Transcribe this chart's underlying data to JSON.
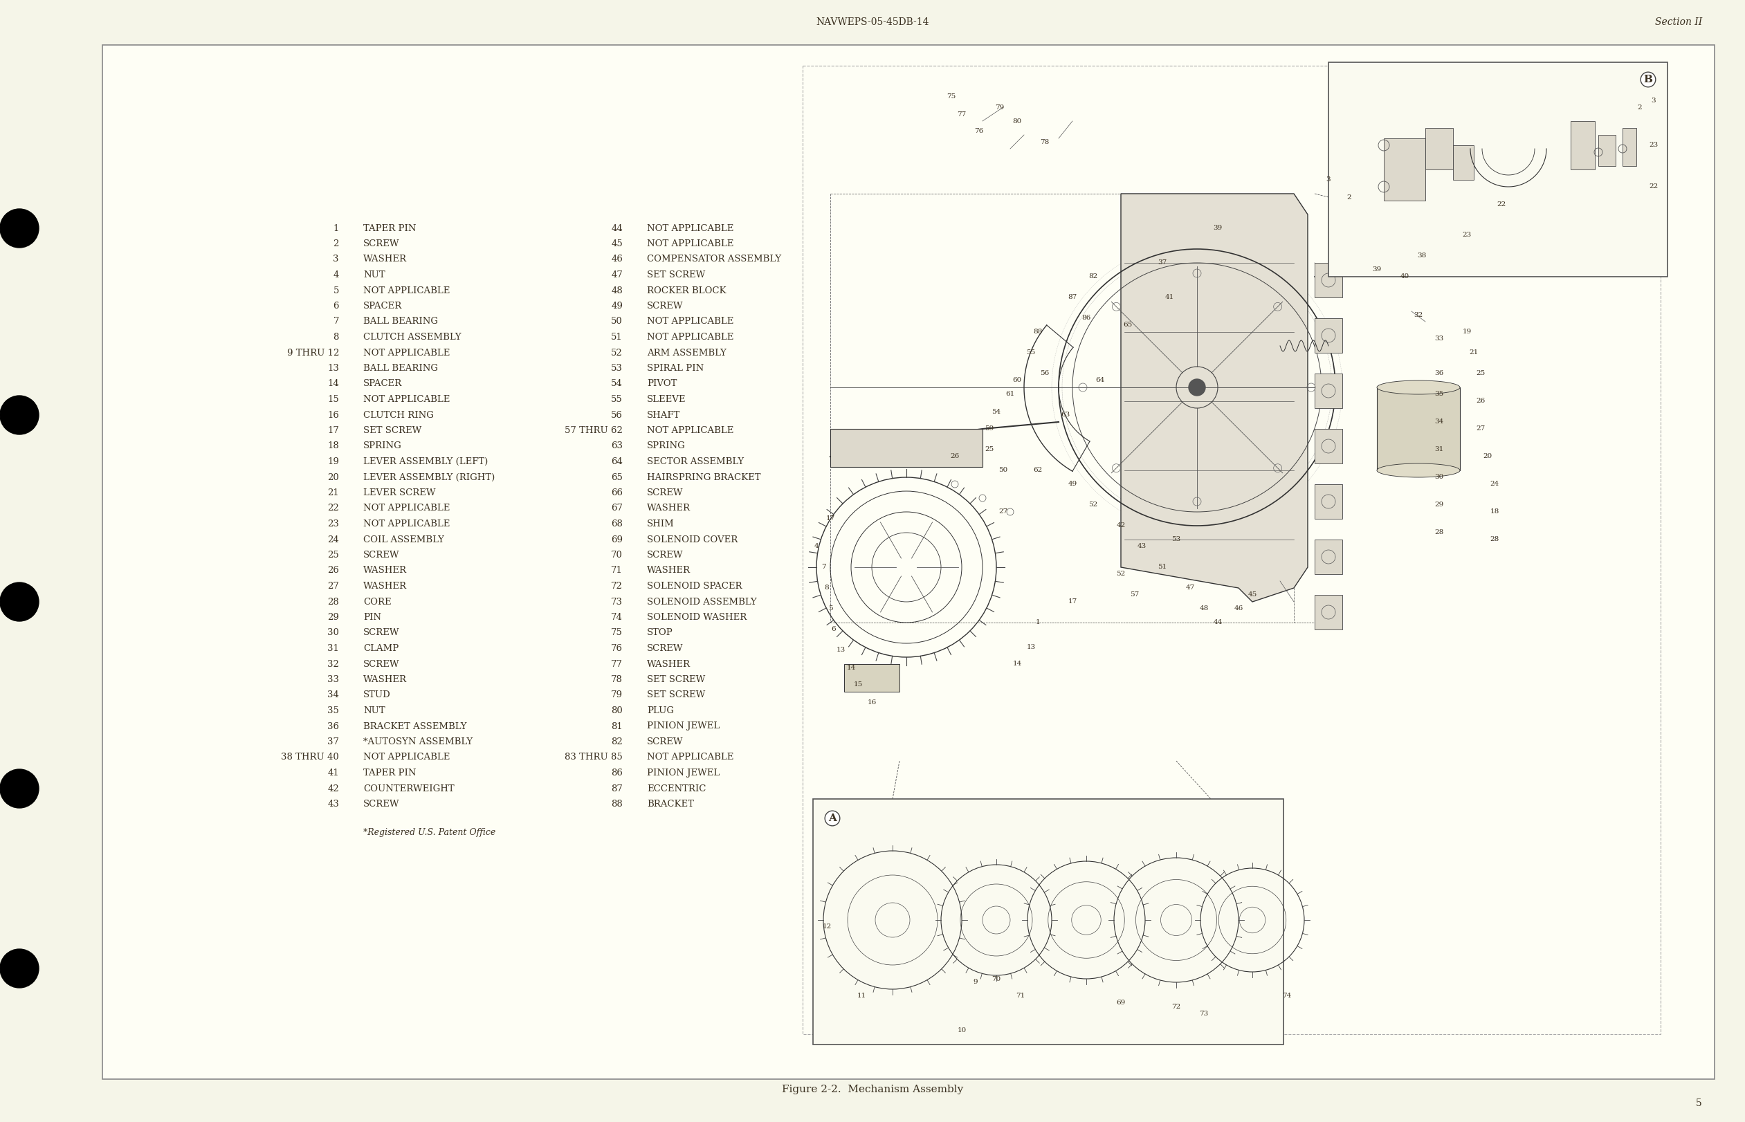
{
  "bg_color": "#F5F5E8",
  "page_bg": "#FEFEF5",
  "border_color": "#666666",
  "text_color": "#3a3020",
  "header_text": "NAVWEPS-05-45DB-14",
  "section_text": "Section II",
  "page_number": "5",
  "caption": "Figure 2-2.  Mechanism Assembly",
  "footnote": "*Registered U.S. Patent Office",
  "parts_col1": [
    [
      "1",
      "TAPER PIN"
    ],
    [
      "2",
      "SCREW"
    ],
    [
      "3",
      "WASHER"
    ],
    [
      "4",
      "NUT"
    ],
    [
      "5",
      "NOT APPLICABLE"
    ],
    [
      "6",
      "SPACER"
    ],
    [
      "7",
      "BALL BEARING"
    ],
    [
      "8",
      "CLUTCH ASSEMBLY"
    ],
    [
      "9 THRU 12",
      "NOT APPLICABLE"
    ],
    [
      "13",
      "BALL BEARING"
    ],
    [
      "14",
      "SPACER"
    ],
    [
      "15",
      "NOT APPLICABLE"
    ],
    [
      "16",
      "CLUTCH RING"
    ],
    [
      "17",
      "SET SCREW"
    ],
    [
      "18",
      "SPRING"
    ],
    [
      "19",
      "LEVER ASSEMBLY (LEFT)"
    ],
    [
      "20",
      "LEVER ASSEMBLY (RIGHT)"
    ],
    [
      "21",
      "LEVER SCREW"
    ],
    [
      "22",
      "NOT APPLICABLE"
    ],
    [
      "23",
      "NOT APPLICABLE"
    ],
    [
      "24",
      "COIL ASSEMBLY"
    ],
    [
      "25",
      "SCREW"
    ],
    [
      "26",
      "WASHER"
    ],
    [
      "27",
      "WASHER"
    ],
    [
      "28",
      "CORE"
    ],
    [
      "29",
      "PIN"
    ],
    [
      "30",
      "SCREW"
    ],
    [
      "31",
      "CLAMP"
    ],
    [
      "32",
      "SCREW"
    ],
    [
      "33",
      "WASHER"
    ],
    [
      "34",
      "STUD"
    ],
    [
      "35",
      "NUT"
    ],
    [
      "36",
      "BRACKET ASSEMBLY"
    ],
    [
      "37",
      "*AUTOSYN ASSEMBLY"
    ],
    [
      "38 THRU 40",
      "NOT APPLICABLE"
    ],
    [
      "41",
      "TAPER PIN"
    ],
    [
      "42",
      "COUNTERWEIGHT"
    ],
    [
      "43",
      "SCREW"
    ]
  ],
  "parts_col2": [
    [
      "44",
      "NOT APPLICABLE"
    ],
    [
      "45",
      "NOT APPLICABLE"
    ],
    [
      "46",
      "COMPENSATOR ASSEMBLY"
    ],
    [
      "47",
      "SET SCREW"
    ],
    [
      "48",
      "ROCKER BLOCK"
    ],
    [
      "49",
      "SCREW"
    ],
    [
      "50",
      "NOT APPLICABLE"
    ],
    [
      "51",
      "NOT APPLICABLE"
    ],
    [
      "52",
      "ARM ASSEMBLY"
    ],
    [
      "53",
      "SPIRAL PIN"
    ],
    [
      "54",
      "PIVOT"
    ],
    [
      "55",
      "SLEEVE"
    ],
    [
      "56",
      "SHAFT"
    ],
    [
      "57 THRU 62",
      "NOT APPLICABLE"
    ],
    [
      "63",
      "SPRING"
    ],
    [
      "64",
      "SECTOR ASSEMBLY"
    ],
    [
      "65",
      "HAIRSPRING BRACKET"
    ],
    [
      "66",
      "SCREW"
    ],
    [
      "67",
      "WASHER"
    ],
    [
      "68",
      "SHIM"
    ],
    [
      "69",
      "SOLENOID COVER"
    ],
    [
      "70",
      "SCREW"
    ],
    [
      "71",
      "WASHER"
    ],
    [
      "72",
      "SOLENOID SPACER"
    ],
    [
      "73",
      "SOLENOID ASSEMBLY"
    ],
    [
      "74",
      "SOLENOID WASHER"
    ],
    [
      "75",
      "STOP"
    ],
    [
      "76",
      "SCREW"
    ],
    [
      "77",
      "WASHER"
    ],
    [
      "78",
      "SET SCREW"
    ],
    [
      "79",
      "SET SCREW"
    ],
    [
      "80",
      "PLUG"
    ],
    [
      "81",
      "PINION JEWEL"
    ],
    [
      "82",
      "SCREW"
    ],
    [
      "83 THRU 85",
      "NOT APPLICABLE"
    ],
    [
      "86",
      "PINION JEWEL"
    ],
    [
      "87",
      "ECCENTRIC"
    ],
    [
      "88",
      "BRACKET"
    ]
  ]
}
